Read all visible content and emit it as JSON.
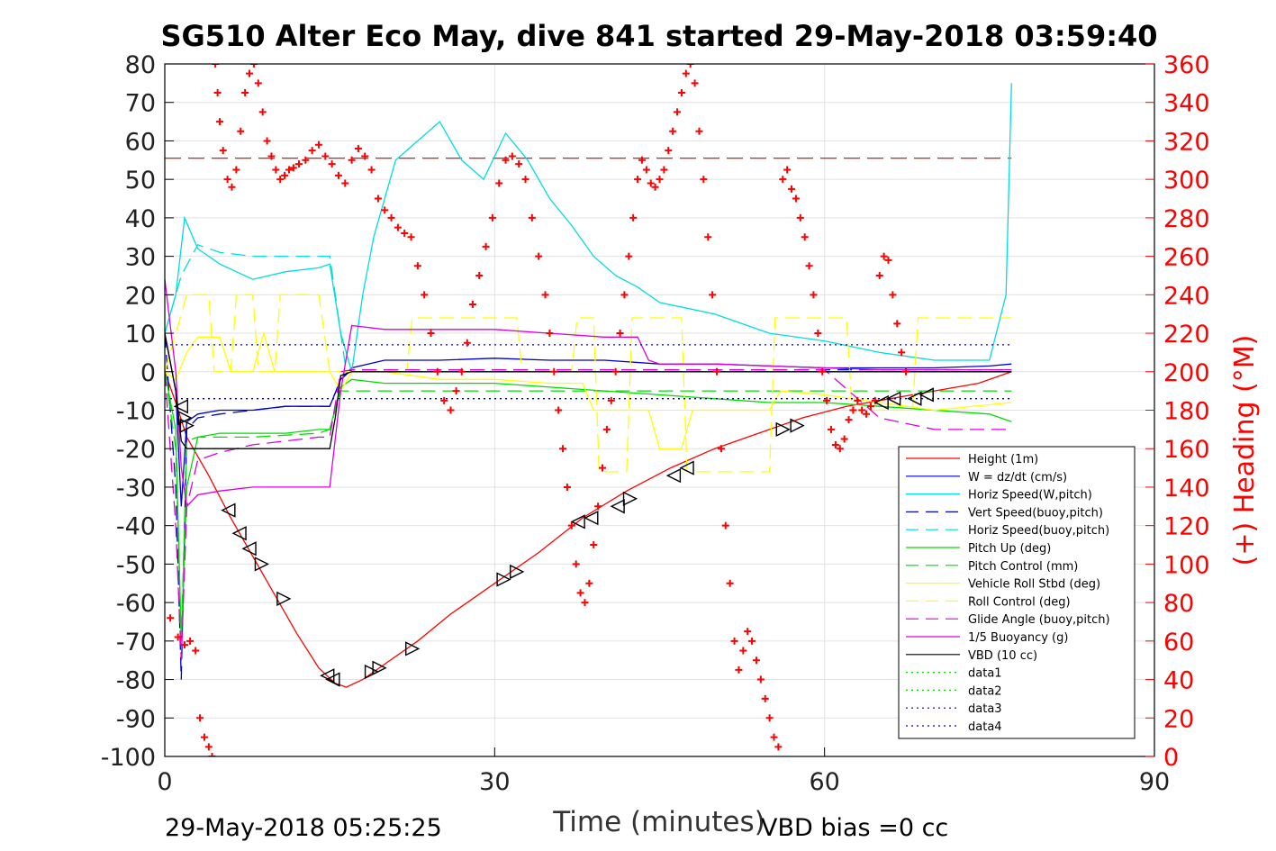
{
  "chart_data": {
    "type": "line",
    "title": "SG510 Alter Eco May, dive 841 started 29-May-2018 03:59:40",
    "xlabel": "Time (minutes)",
    "ylabel": "",
    "y2label": "(+) Heading (°M)",
    "xlim": [
      0,
      90
    ],
    "ylim": [
      -100,
      80
    ],
    "y2lim": [
      0,
      360
    ],
    "x_ticks": [
      0,
      30,
      60,
      90
    ],
    "y_ticks": [
      80,
      70,
      60,
      50,
      40,
      30,
      20,
      10,
      0,
      -10,
      -20,
      -30,
      -40,
      -50,
      -60,
      -70,
      -80,
      -90,
      -100
    ],
    "y2_ticks": [
      360,
      340,
      320,
      300,
      280,
      260,
      240,
      220,
      200,
      180,
      160,
      140,
      120,
      100,
      80,
      60,
      40,
      20,
      0
    ],
    "grid": true,
    "legend_position": "bottom-right",
    "footer_left": "29-May-2018 05:25:25",
    "footer_right": "VBD bias =0 cc",
    "series": [
      {
        "name": "Height (1m)",
        "color": "#ff0000",
        "style": "solid",
        "x": [
          0,
          1,
          2,
          4,
          6,
          8,
          10,
          12,
          14,
          15.5,
          16.5,
          18,
          20,
          23,
          26,
          30,
          34,
          38,
          42,
          46,
          50,
          54,
          58,
          62,
          66,
          70,
          74,
          77
        ],
        "y": [
          0,
          -8,
          -17,
          -27,
          -38,
          -48,
          -58,
          -68,
          -77,
          -81,
          -82,
          -80,
          -76,
          -70,
          -63,
          -55,
          -47,
          -38,
          -31,
          -25,
          -20,
          -16,
          -12,
          -9,
          -7,
          -5,
          -3,
          0
        ]
      },
      {
        "name": "W = dz/dt (cm/s)",
        "color": "#0000cc",
        "style": "solid",
        "x": [
          0,
          1,
          1.5,
          2,
          3,
          5,
          8,
          11,
          14,
          15,
          16,
          17,
          20,
          25,
          30,
          35,
          40,
          45,
          50,
          55,
          60,
          65,
          70,
          75,
          77
        ],
        "y": [
          10,
          -5,
          -35,
          -13,
          -11,
          -10,
          -10,
          -9,
          -9,
          -9,
          -2,
          1,
          3,
          3,
          3.5,
          3,
          3,
          2,
          2,
          1.5,
          1,
          1,
          1,
          1.5,
          2
        ]
      },
      {
        "name": "Horiz Speed(W,pitch)",
        "color": "#00dddd",
        "style": "solid",
        "x": [
          0,
          1,
          1.8,
          3,
          5,
          8,
          11,
          14,
          15,
          16,
          17,
          18,
          19,
          21,
          23,
          25,
          27,
          29,
          31,
          33,
          35,
          37,
          39,
          41,
          43,
          45,
          50,
          55,
          60,
          65,
          70,
          75,
          76.5,
          77
        ],
        "y": [
          10,
          20,
          40,
          32,
          28,
          24,
          26,
          27,
          28,
          10,
          0,
          20,
          35,
          55,
          60,
          65,
          55,
          50,
          62,
          55,
          45,
          38,
          30,
          25,
          22,
          18,
          15,
          10,
          8,
          5,
          3,
          3,
          20,
          75
        ]
      },
      {
        "name": "Vert Speed(buoy,pitch)",
        "color": "#0000cc",
        "style": "dashed",
        "x": [
          0,
          1,
          1.5,
          2,
          3,
          5,
          8,
          11,
          14,
          15,
          16,
          17,
          20,
          30,
          40,
          50,
          60,
          70,
          77
        ],
        "y": [
          10,
          -30,
          -80,
          -15,
          -12,
          -11,
          -10,
          -9,
          -9,
          -9,
          -2,
          0.5,
          0.5,
          0.5,
          0.5,
          0.5,
          0.5,
          0.5,
          0.5
        ]
      },
      {
        "name": "Horiz Speed(buoy,pitch)",
        "color": "#00dddd",
        "style": "dashed",
        "x": [
          0,
          1.5,
          3,
          5,
          8,
          11,
          14,
          15,
          16,
          16.5,
          20,
          30,
          40,
          50,
          60,
          70,
          77
        ],
        "y": [
          10,
          25,
          33,
          31,
          30,
          30,
          30,
          30,
          10,
          0,
          0,
          0,
          0,
          0,
          0,
          0,
          0
        ]
      },
      {
        "name": "Pitch Up (deg)",
        "color": "#00dd00",
        "style": "solid",
        "x": [
          0,
          1,
          1.5,
          2,
          3,
          5,
          8,
          11,
          14,
          15,
          16,
          17,
          20,
          25,
          30,
          35,
          40,
          45,
          50,
          55,
          60,
          65,
          70,
          75,
          77
        ],
        "y": [
          0,
          -15,
          -70,
          -30,
          -17,
          -16,
          -16,
          -16,
          -15,
          -15,
          -4,
          -2,
          -3,
          -3,
          -3,
          -4,
          -5,
          -6,
          -7,
          -8,
          -8,
          -9,
          -10,
          -11,
          -13
        ]
      },
      {
        "name": "Pitch Control (mm)",
        "color": "#00dd00",
        "style": "dashed",
        "x": [
          0,
          1,
          1.5,
          2,
          3,
          8,
          14,
          15,
          16,
          17,
          25,
          35,
          45,
          55,
          65,
          77
        ],
        "y": [
          0,
          -20,
          -70,
          -18,
          -17,
          -17,
          -16,
          -15,
          -5,
          -5,
          -5,
          -5,
          -5,
          -5,
          -5,
          -5
        ]
      },
      {
        "name": "Vehicle Roll Stbd (deg)",
        "color": "#ffff00",
        "style": "solid",
        "x": [
          0,
          1,
          2,
          3,
          5,
          6,
          8,
          9,
          10,
          12,
          14,
          15,
          16,
          17,
          20,
          25,
          30,
          35,
          38,
          39,
          40,
          44,
          45,
          47,
          48,
          55,
          56,
          60,
          65,
          70,
          77
        ],
        "y": [
          0,
          -2,
          5,
          9,
          9,
          0,
          0,
          10,
          0,
          0,
          0,
          0,
          -5,
          0,
          0,
          -2,
          -2,
          -3,
          -3,
          -10,
          -10,
          -10,
          -20,
          -20,
          -10,
          -10,
          -5,
          -6,
          -8,
          -10,
          -8
        ]
      },
      {
        "name": "Roll Control (deg)",
        "color": "#ffff00",
        "style": "dashed",
        "x": [
          0,
          2,
          4,
          4.5,
          6,
          6.5,
          8,
          8.5,
          10,
          10.5,
          14,
          15,
          20,
          22,
          22.5,
          30,
          32,
          32.5,
          37,
          37.5,
          39,
          39.5,
          42,
          42.5,
          47,
          47.5,
          55,
          55.5,
          60,
          62,
          62.5,
          68,
          68.5,
          77
        ],
        "y": [
          0,
          20,
          20,
          0,
          0,
          20,
          20,
          0,
          0,
          20,
          20,
          0,
          0,
          0,
          14,
          14,
          14,
          0,
          0,
          14,
          14,
          -26,
          -26,
          14,
          14,
          -26,
          -26,
          14,
          14,
          14,
          -10,
          -10,
          14,
          14
        ]
      },
      {
        "name": "Glide Angle (buoy,pitch)",
        "color": "#dd00dd",
        "style": "dashed",
        "x": [
          0,
          1,
          1.5,
          2,
          3,
          5,
          8,
          11,
          14,
          15,
          16,
          17,
          20,
          30,
          40,
          50,
          60,
          65,
          70,
          77
        ],
        "y": [
          0,
          -40,
          -75,
          -35,
          -23,
          -21,
          -19,
          -18,
          -17,
          -17,
          0,
          0.5,
          0.5,
          0.5,
          0.5,
          0.5,
          0.5,
          -12,
          -15,
          -15
        ]
      },
      {
        "name": "1/5 Buoyancy (g)",
        "color": "#dd00dd",
        "style": "solid",
        "x": [
          0,
          1,
          1.5,
          2,
          3,
          5,
          8,
          11,
          14,
          15,
          16,
          17,
          20,
          25,
          30,
          35,
          40,
          43,
          44,
          45,
          50,
          55,
          60,
          65,
          70,
          77
        ],
        "y": [
          24,
          0,
          -25,
          -35,
          -32,
          -31,
          -30,
          -30,
          -30,
          -30,
          -5,
          12,
          11,
          11,
          11,
          10,
          9,
          9,
          3,
          2,
          2,
          1.5,
          1,
          0.5,
          0.5,
          0.5
        ]
      },
      {
        "name": "VBD (10 cc)",
        "color": "#000000",
        "style": "solid",
        "x": [
          0,
          1,
          1.5,
          2,
          3,
          6,
          10,
          14,
          15,
          15.5,
          16,
          17,
          20,
          30,
          40,
          50,
          60,
          70,
          77
        ],
        "y": [
          10,
          -5,
          -18,
          -20,
          -20,
          -20,
          -20,
          -20,
          -20,
          -12,
          -1,
          0,
          0,
          0,
          0,
          0,
          0,
          0,
          0
        ]
      },
      {
        "name": "data1",
        "color": "#00dd00",
        "style": "dotted",
        "x": [],
        "y": []
      },
      {
        "name": "data2",
        "color": "#00dd00",
        "style": "dotted",
        "x": [],
        "y": []
      },
      {
        "name": "data3",
        "color": "#000080",
        "style": "dotted",
        "x": [
          0,
          77
        ],
        "y": [
          -7,
          -7
        ]
      },
      {
        "name": "data4",
        "color": "#0000cc",
        "style": "dotted",
        "x": [
          0,
          77
        ],
        "y": [
          7,
          7
        ]
      }
    ],
    "reference_line": {
      "axis": "y2",
      "value": 311,
      "color": "#cc0000",
      "style": "dashed",
      "x": [
        0,
        77
      ]
    },
    "heading_points": {
      "axis": "y2",
      "color": "#ff0000",
      "marker": "+",
      "x": [
        0.5,
        1.2,
        1.8,
        2.3,
        2.8,
        3.2,
        3.6,
        4.0,
        4.3,
        4.6,
        4.8,
        5.0,
        5.3,
        5.7,
        6.1,
        6.5,
        6.9,
        7.3,
        7.7,
        8.1,
        8.5,
        8.9,
        9.3,
        9.7,
        10.1,
        10.5,
        10.9,
        11.3,
        11.7,
        12.2,
        12.8,
        13.4,
        14.0,
        14.6,
        15.2,
        15.8,
        16.4,
        17.0,
        17.6,
        18.2,
        18.8,
        19.4,
        20.0,
        20.6,
        21.2,
        21.8,
        22.4,
        23.0,
        23.6,
        24.2,
        24.8,
        25.4,
        26.0,
        26.5,
        27.0,
        27.5,
        28.0,
        28.6,
        29.2,
        29.8,
        30.4,
        31.0,
        31.6,
        32.2,
        32.8,
        33.4,
        34.0,
        34.6,
        35.0,
        35.4,
        35.8,
        36.2,
        36.6,
        37.0,
        37.4,
        37.8,
        38.2,
        38.6,
        39.0,
        39.4,
        39.8,
        40.2,
        40.6,
        41.0,
        41.4,
        41.8,
        42.2,
        42.6,
        43.0,
        43.4,
        43.8,
        44.2,
        44.6,
        45.0,
        45.4,
        45.8,
        46.2,
        46.6,
        47.0,
        47.4,
        47.8,
        48.2,
        48.6,
        49.0,
        49.4,
        49.8,
        50.2,
        50.6,
        51.0,
        51.4,
        51.8,
        52.2,
        52.6,
        53.0,
        53.4,
        53.8,
        54.2,
        54.6,
        55.0,
        55.4,
        55.8,
        56.2,
        56.6,
        57.0,
        57.4,
        57.8,
        58.2,
        58.6,
        59.0,
        59.4,
        59.8,
        60.2,
        60.6,
        61.0,
        61.4,
        61.8,
        62.2,
        62.6,
        63.0,
        63.4,
        63.8,
        64.2,
        64.6,
        65.0,
        65.4,
        65.8,
        66.2,
        66.6,
        67.0,
        67.4
      ],
      "y": [
        72,
        62,
        58,
        60,
        55,
        20,
        10,
        5,
        0,
        360,
        345,
        330,
        315,
        300,
        296,
        305,
        325,
        345,
        355,
        360,
        350,
        335,
        320,
        312,
        305,
        300,
        302,
        305,
        306,
        308,
        310,
        315,
        318,
        312,
        308,
        302,
        298,
        310,
        316,
        312,
        305,
        290,
        284,
        280,
        275,
        272,
        270,
        255,
        240,
        220,
        200,
        185,
        180,
        190,
        200,
        215,
        235,
        250,
        265,
        280,
        298,
        310,
        312,
        308,
        300,
        280,
        260,
        240,
        220,
        200,
        180,
        160,
        140,
        120,
        100,
        85,
        80,
        90,
        110,
        130,
        150,
        170,
        185,
        200,
        220,
        240,
        260,
        280,
        300,
        310,
        305,
        298,
        296,
        300,
        305,
        315,
        325,
        335,
        345,
        355,
        360,
        350,
        325,
        300,
        270,
        240,
        200,
        160,
        120,
        90,
        60,
        45,
        55,
        65,
        60,
        50,
        40,
        30,
        20,
        10,
        5,
        300,
        305,
        295,
        290,
        280,
        270,
        255,
        240,
        220,
        200,
        185,
        170,
        162,
        160,
        165,
        175,
        180,
        185,
        180,
        178,
        182,
        185,
        250,
        260,
        258,
        240,
        225,
        210,
        200
      ]
    },
    "triangle_markers": {
      "color": "#000000",
      "points": [
        {
          "x": 1.5,
          "y": -9,
          "dir": "left"
        },
        {
          "x": 1.8,
          "y": -12,
          "dir": "right"
        },
        {
          "x": 2.0,
          "y": -14,
          "dir": "right"
        },
        {
          "x": 5.8,
          "y": -36,
          "dir": "left"
        },
        {
          "x": 6.8,
          "y": -42,
          "dir": "left"
        },
        {
          "x": 7.7,
          "y": -46,
          "dir": "left"
        },
        {
          "x": 8.8,
          "y": -50,
          "dir": "right"
        },
        {
          "x": 10.8,
          "y": -59,
          "dir": "right"
        },
        {
          "x": 14.8,
          "y": -79,
          "dir": "left"
        },
        {
          "x": 15.3,
          "y": -80,
          "dir": "left"
        },
        {
          "x": 18.8,
          "y": -78,
          "dir": "right"
        },
        {
          "x": 19.5,
          "y": -77,
          "dir": "right"
        },
        {
          "x": 22.5,
          "y": -72,
          "dir": "right"
        },
        {
          "x": 30.8,
          "y": -54,
          "dir": "right"
        },
        {
          "x": 32.0,
          "y": -52,
          "dir": "right"
        },
        {
          "x": 37.6,
          "y": -39,
          "dir": "left"
        },
        {
          "x": 38.8,
          "y": -38,
          "dir": "left"
        },
        {
          "x": 41.2,
          "y": -35,
          "dir": "left"
        },
        {
          "x": 42.3,
          "y": -33,
          "dir": "right"
        },
        {
          "x": 46.3,
          "y": -27,
          "dir": "left"
        },
        {
          "x": 47.5,
          "y": -25,
          "dir": "left"
        },
        {
          "x": 56.2,
          "y": -15,
          "dir": "right"
        },
        {
          "x": 57.5,
          "y": -14,
          "dir": "right"
        },
        {
          "x": 65.2,
          "y": -8,
          "dir": "left"
        },
        {
          "x": 66.3,
          "y": -7,
          "dir": "left"
        },
        {
          "x": 68.2,
          "y": -7,
          "dir": "left"
        },
        {
          "x": 69.3,
          "y": -6,
          "dir": "left"
        }
      ]
    }
  }
}
